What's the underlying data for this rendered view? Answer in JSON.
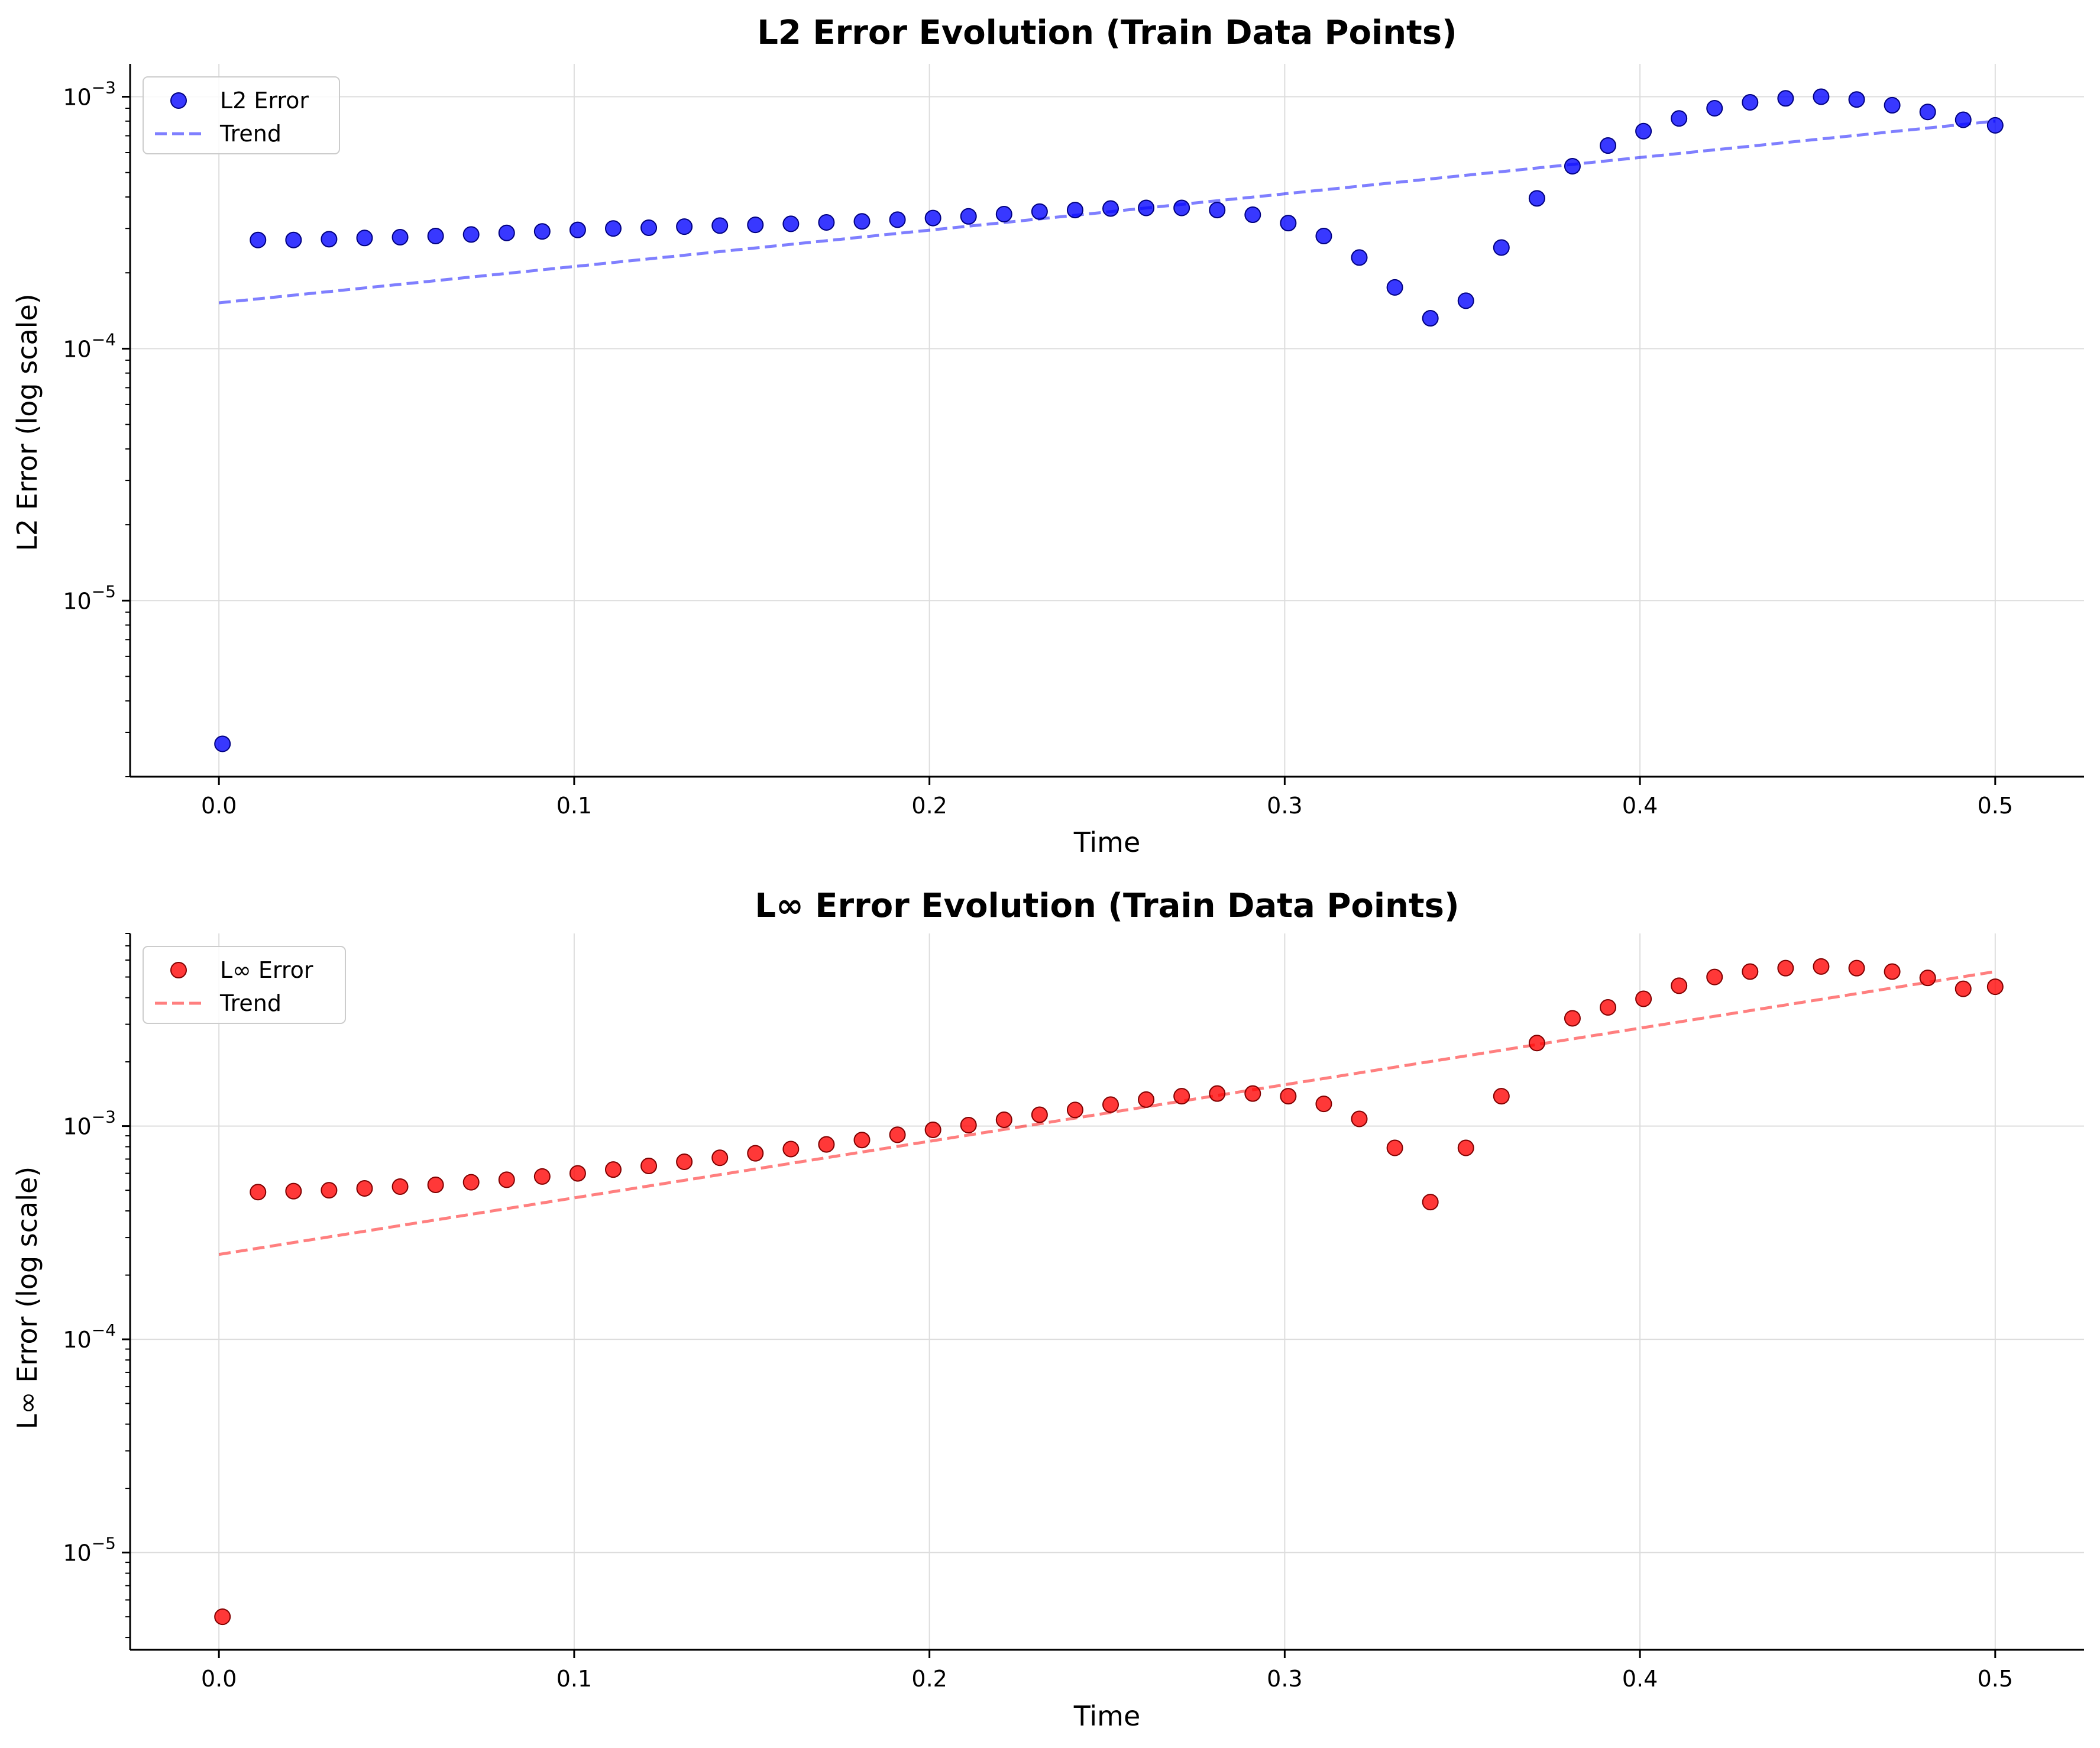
{
  "chart_data": [
    {
      "type": "scatter",
      "title": "L2 Error Evolution (Train Data Points)",
      "xlabel": "Time",
      "ylabel": "L2 Error (log scale)",
      "yscale": "log",
      "xlim": [
        -0.025,
        0.525
      ],
      "ylim": [
        2e-06,
        0.00135
      ],
      "xticks": [
        0.0,
        0.1,
        0.2,
        0.3,
        0.4,
        0.5
      ],
      "xtick_labels": [
        "0.0",
        "0.1",
        "0.2",
        "0.3",
        "0.4",
        "0.5"
      ],
      "yticks": [
        1e-05,
        0.0001,
        0.001
      ],
      "ytick_labels": [
        {
          "base": "10",
          "exp": "−5"
        },
        {
          "base": "10",
          "exp": "−4"
        },
        {
          "base": "10",
          "exp": "−3"
        }
      ],
      "grid": true,
      "legend_position": "top-left",
      "color": "#0000ff",
      "trend_color": "#0000ff",
      "series": [
        {
          "name": "L2 Error",
          "x": [
            0.001,
            0.011,
            0.021,
            0.031,
            0.041,
            0.051,
            0.061,
            0.071,
            0.081,
            0.091,
            0.101,
            0.111,
            0.121,
            0.131,
            0.141,
            0.151,
            0.161,
            0.171,
            0.181,
            0.191,
            0.201,
            0.211,
            0.221,
            0.231,
            0.241,
            0.251,
            0.261,
            0.271,
            0.281,
            0.291,
            0.301,
            0.311,
            0.321,
            0.331,
            0.341,
            0.351,
            0.361,
            0.371,
            0.381,
            0.391,
            0.401,
            0.411,
            0.421,
            0.431,
            0.441,
            0.451,
            0.461,
            0.471,
            0.481,
            0.491,
            0.5
          ],
          "y": [
            2.7e-06,
            0.00027,
            0.00027,
            0.000272,
            0.000275,
            0.000277,
            0.00028,
            0.000284,
            0.000288,
            0.000292,
            0.000296,
            0.0003,
            0.000302,
            0.000305,
            0.000308,
            0.00031,
            0.000313,
            0.000317,
            0.00032,
            0.000325,
            0.00033,
            0.000335,
            0.000342,
            0.00035,
            0.000355,
            0.00036,
            0.000362,
            0.000362,
            0.000355,
            0.00034,
            0.000315,
            0.00028,
            0.00023,
            0.000175,
            0.000132,
            0.000155,
            0.000252,
            0.000395,
            0.00053,
            0.00064,
            0.00073,
            0.00082,
            0.0009,
            0.00095,
            0.000985,
            0.001,
            0.000975,
            0.000925,
            0.00087,
            0.00081,
            0.00077
          ]
        },
        {
          "name": "Trend",
          "style": "dashed",
          "x": [
            0.0,
            0.5
          ],
          "y": [
            0.000152,
            0.0008
          ]
        }
      ]
    },
    {
      "type": "scatter",
      "title": "L∞ Error Evolution (Train Data Points)",
      "xlabel": "Time",
      "ylabel": "L∞ Error (log scale)",
      "yscale": "log",
      "xlim": [
        -0.025,
        0.525
      ],
      "ylim": [
        3.5e-06,
        0.008
      ],
      "xticks": [
        0.0,
        0.1,
        0.2,
        0.3,
        0.4,
        0.5
      ],
      "xtick_labels": [
        "0.0",
        "0.1",
        "0.2",
        "0.3",
        "0.4",
        "0.5"
      ],
      "yticks": [
        1e-05,
        0.0001,
        0.001
      ],
      "ytick_labels": [
        {
          "base": "10",
          "exp": "−5"
        },
        {
          "base": "10",
          "exp": "−4"
        },
        {
          "base": "10",
          "exp": "−3"
        }
      ],
      "grid": true,
      "legend_position": "top-left",
      "color": "#ff0000",
      "trend_color": "#ff0000",
      "series": [
        {
          "name": "L∞ Error",
          "x": [
            0.001,
            0.011,
            0.021,
            0.031,
            0.041,
            0.051,
            0.061,
            0.071,
            0.081,
            0.091,
            0.101,
            0.111,
            0.121,
            0.131,
            0.141,
            0.151,
            0.161,
            0.171,
            0.181,
            0.191,
            0.201,
            0.211,
            0.221,
            0.231,
            0.241,
            0.251,
            0.261,
            0.271,
            0.281,
            0.291,
            0.301,
            0.311,
            0.321,
            0.331,
            0.341,
            0.351,
            0.361,
            0.371,
            0.381,
            0.391,
            0.401,
            0.411,
            0.421,
            0.431,
            0.441,
            0.451,
            0.461,
            0.471,
            0.481,
            0.491,
            0.5
          ],
          "y": [
            5e-06,
            0.00049,
            0.000495,
            0.0005,
            0.00051,
            0.00052,
            0.00053,
            0.000545,
            0.00056,
            0.00058,
            0.0006,
            0.000625,
            0.00065,
            0.00068,
            0.00071,
            0.000745,
            0.00078,
            0.00082,
            0.00086,
            0.00091,
            0.00096,
            0.00101,
            0.00107,
            0.00113,
            0.00119,
            0.00126,
            0.00133,
            0.00138,
            0.00142,
            0.00142,
            0.00138,
            0.00127,
            0.00108,
            0.00079,
            0.00044,
            0.00079,
            0.00138,
            0.00245,
            0.0032,
            0.0036,
            0.00395,
            0.00455,
            0.005,
            0.0053,
            0.0055,
            0.0056,
            0.0055,
            0.0053,
            0.00495,
            0.0044,
            0.0045
          ]
        },
        {
          "name": "Trend",
          "style": "dashed",
          "x": [
            0.0,
            0.5
          ],
          "y": [
            0.00025,
            0.0053
          ]
        }
      ]
    }
  ]
}
